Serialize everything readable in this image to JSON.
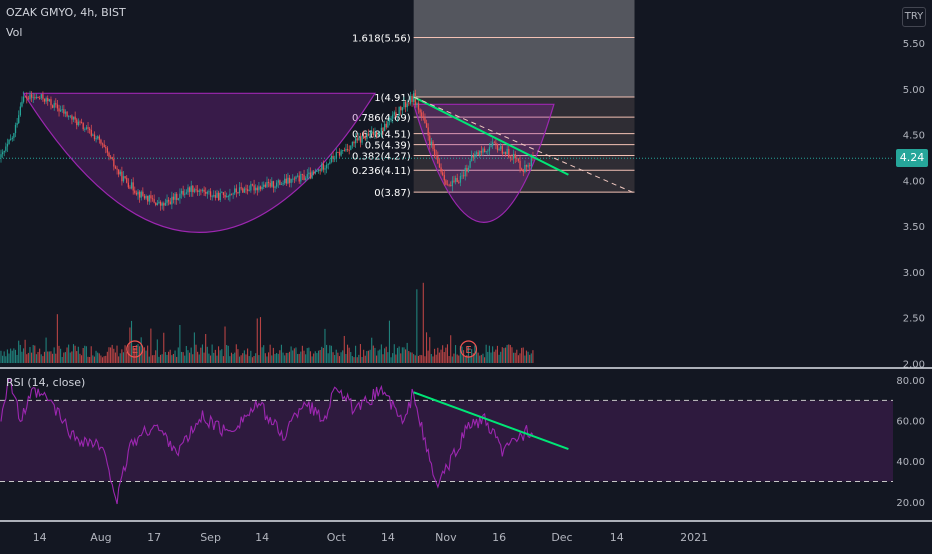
{
  "header": {
    "symbol": "OZAK GMYO, 4h, BIST",
    "volume_label": "Vol",
    "rsi_label": "RSI (14, close)",
    "currency": "TRY"
  },
  "last_price": "4.24",
  "colors": {
    "background": "#131722",
    "up": "#26a69a",
    "down": "#ef5350",
    "rsi_line": "#9c27b0",
    "pattern_fill": "#9c27b0",
    "trendline": "#00e676",
    "fib_line": "#f3c2b5",
    "axis_text": "#b2b5be"
  },
  "chart_data": [
    {
      "type": "candlestick",
      "title": "OZAK GMYO, 4h, BIST",
      "ylim": [
        1.97,
        5.97
      ],
      "y_ticks": [
        "2.00",
        "2.50",
        "3.00",
        "3.50",
        "4.00",
        "4.50",
        "5.00",
        "5.50"
      ],
      "y_tick_values": [
        2.0,
        2.5,
        3.0,
        3.5,
        4.0,
        4.5,
        5.0,
        5.5
      ],
      "x_ticks": [
        "14",
        "Aug",
        "17",
        "Sep",
        "14",
        "Oct",
        "14",
        "Nov",
        "16",
        "Dec",
        "14",
        "2021"
      ],
      "x_tick_bars": [
        24,
        62,
        95,
        130,
        162,
        208,
        240,
        276,
        309,
        348,
        382,
        430
      ],
      "close_anchors": [
        [
          0,
          4.25
        ],
        [
          8,
          4.5
        ],
        [
          13,
          4.9
        ],
        [
          26,
          4.9
        ],
        [
          46,
          4.65
        ],
        [
          60,
          4.45
        ],
        [
          74,
          4.05
        ],
        [
          86,
          3.85
        ],
        [
          100,
          3.72
        ],
        [
          118,
          3.92
        ],
        [
          134,
          3.82
        ],
        [
          150,
          3.9
        ],
        [
          174,
          3.97
        ],
        [
          194,
          4.06
        ],
        [
          204,
          4.22
        ],
        [
          220,
          4.42
        ],
        [
          236,
          4.55
        ],
        [
          248,
          4.78
        ],
        [
          256,
          4.91
        ],
        [
          262,
          4.65
        ],
        [
          270,
          4.22
        ],
        [
          278,
          3.92
        ],
        [
          286,
          4.05
        ],
        [
          294,
          4.28
        ],
        [
          306,
          4.38
        ],
        [
          318,
          4.26
        ],
        [
          324,
          4.12
        ],
        [
          330,
          4.24
        ]
      ],
      "last_close": 4.24,
      "events": [
        {
          "label": "E",
          "bar": 83
        },
        {
          "label": "E",
          "bar": 290
        }
      ],
      "fibonacci": {
        "levels": [
          {
            "label": "1.618(5.56)",
            "value": 5.56
          },
          {
            "label": "1(4.91)",
            "value": 4.91
          },
          {
            "label": "0.786(4.69)",
            "value": 4.69
          },
          {
            "label": "0.618(4.51)",
            "value": 4.51
          },
          {
            "label": "0.5(4.39)",
            "value": 4.39
          },
          {
            "label": "0.382(4.27)",
            "value": 4.27
          },
          {
            "label": "0.236(4.11)",
            "value": 4.11
          },
          {
            "label": "0(3.87)",
            "value": 3.87
          }
        ],
        "bar_range": [
          256,
          393
        ],
        "top_value": 5.97
      },
      "cup_patterns": [
        {
          "bar_from": 14,
          "bar_to": 232,
          "rim": 4.95,
          "bottom": 3.43
        },
        {
          "bar_from": 256,
          "bar_to": 343,
          "rim": 4.83,
          "bottom": 3.54
        }
      ],
      "trendlines": [
        {
          "style": "solid",
          "from": [
            256,
            4.91
          ],
          "to": [
            352,
            4.06
          ]
        },
        {
          "style": "dashed",
          "from": [
            256,
            4.91
          ],
          "to": [
            393,
            3.86
          ]
        }
      ]
    },
    {
      "type": "bar",
      "title": "Vol",
      "unit": "relative volume"
    },
    {
      "type": "line",
      "title": "RSI (14, close)",
      "ylim": [
        12,
        84
      ],
      "y_ticks": [
        "80.00",
        "60.00",
        "40.00",
        "20.00"
      ],
      "y_tick_values": [
        80,
        60,
        40,
        20
      ],
      "upper_band": 70,
      "lower_band": 30,
      "anchors": [
        [
          0,
          62
        ],
        [
          5,
          82
        ],
        [
          12,
          60
        ],
        [
          20,
          74
        ],
        [
          30,
          70
        ],
        [
          45,
          52
        ],
        [
          60,
          48
        ],
        [
          66,
          40
        ],
        [
          72,
          20
        ],
        [
          80,
          48
        ],
        [
          95,
          58
        ],
        [
          110,
          45
        ],
        [
          125,
          62
        ],
        [
          140,
          54
        ],
        [
          160,
          68
        ],
        [
          175,
          52
        ],
        [
          188,
          70
        ],
        [
          200,
          60
        ],
        [
          208,
          78
        ],
        [
          220,
          64
        ],
        [
          236,
          76
        ],
        [
          250,
          58
        ],
        [
          256,
          75
        ],
        [
          262,
          52
        ],
        [
          270,
          28
        ],
        [
          278,
          38
        ],
        [
          290,
          58
        ],
        [
          300,
          60
        ],
        [
          312,
          44
        ],
        [
          320,
          52
        ],
        [
          330,
          56
        ]
      ],
      "trendline": {
        "from": [
          256,
          74
        ],
        "to": [
          352,
          46
        ]
      }
    }
  ]
}
